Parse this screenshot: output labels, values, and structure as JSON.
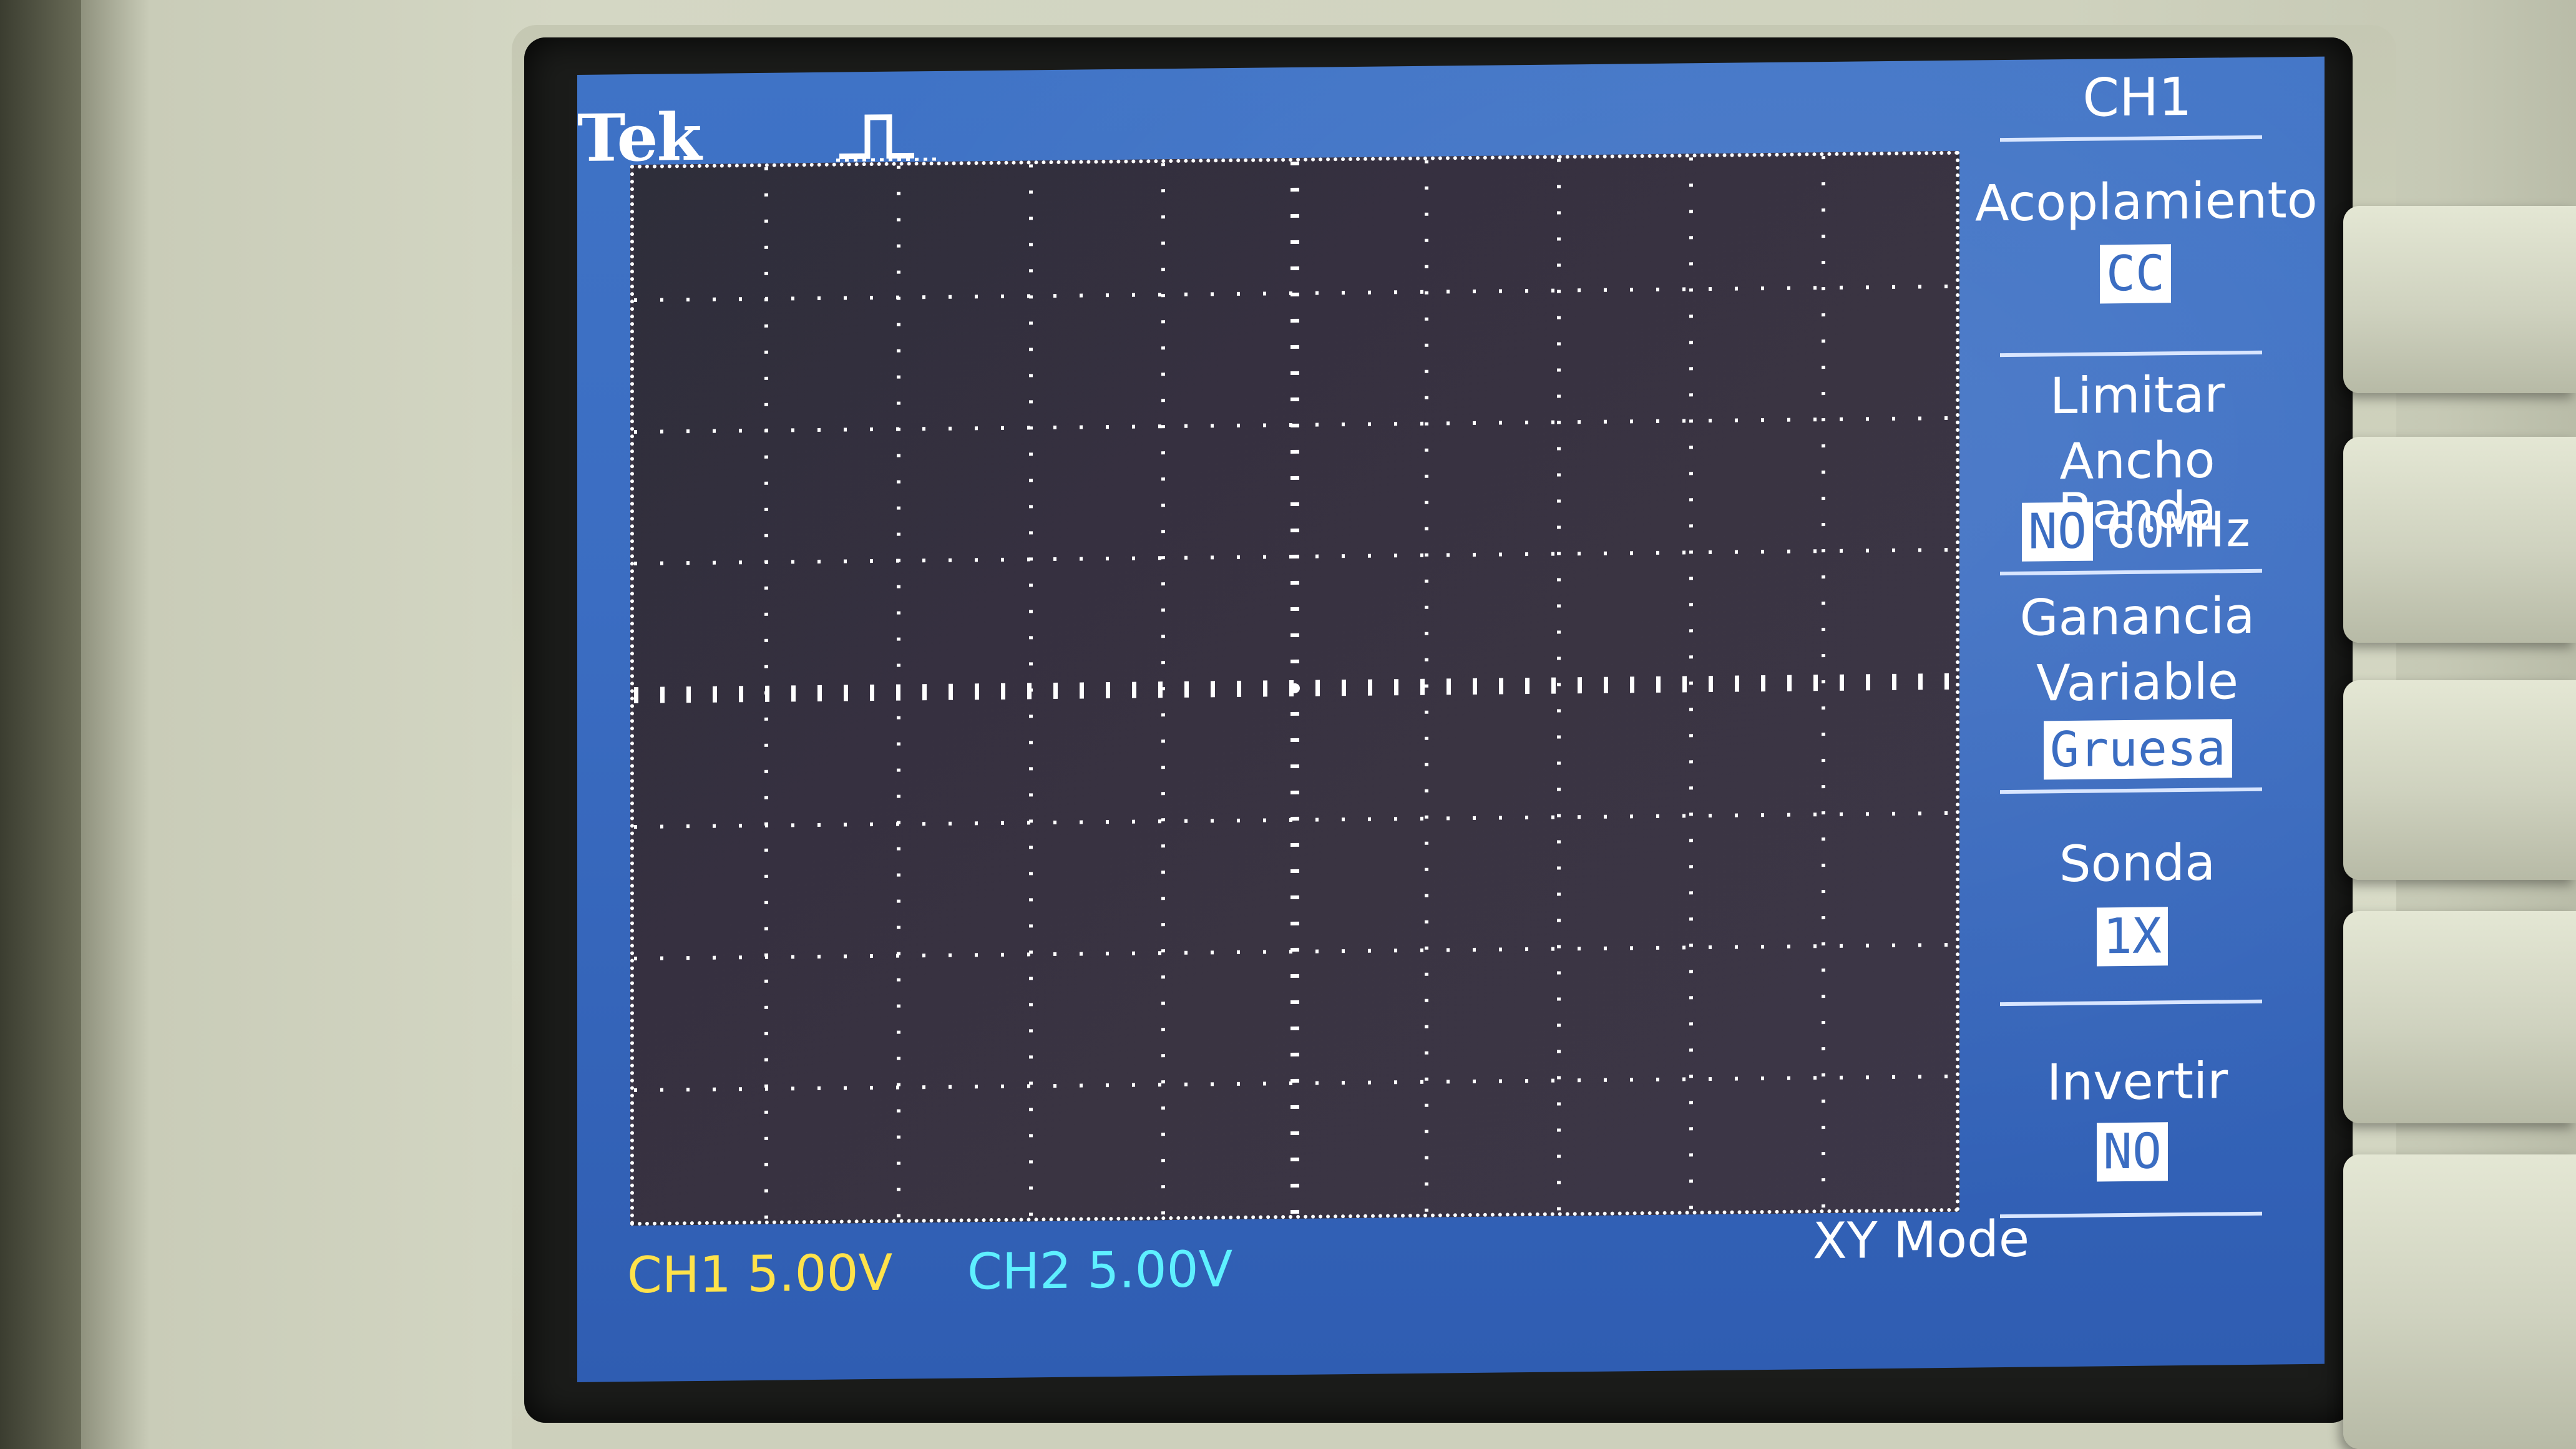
{
  "brand": "Tek",
  "menu": {
    "title": "CH1",
    "items": [
      {
        "label_lines": [
          "Acoplamiento"
        ],
        "value": "CC"
      },
      {
        "label_lines": [
          "Limitar",
          "Ancho Banda"
        ],
        "value": "NO",
        "extra": "60MHz"
      },
      {
        "label_lines": [
          "Ganancia",
          "Variable"
        ],
        "value": "Gruesa"
      },
      {
        "label_lines": [
          "Sonda"
        ],
        "value": "1X"
      },
      {
        "label_lines": [
          "Invertir"
        ],
        "value": "NO"
      }
    ]
  },
  "status": {
    "ch1": "CH1  5.00V",
    "ch2": "CH2  5.00V",
    "mode": "XY Mode"
  },
  "colors": {
    "ch1": "#ffe24a",
    "ch2": "#5ef0ff",
    "screen_background": "#3b6dc2",
    "text": "#ffffff"
  },
  "icons": {
    "trigger": "pulse-trigger-icon"
  }
}
